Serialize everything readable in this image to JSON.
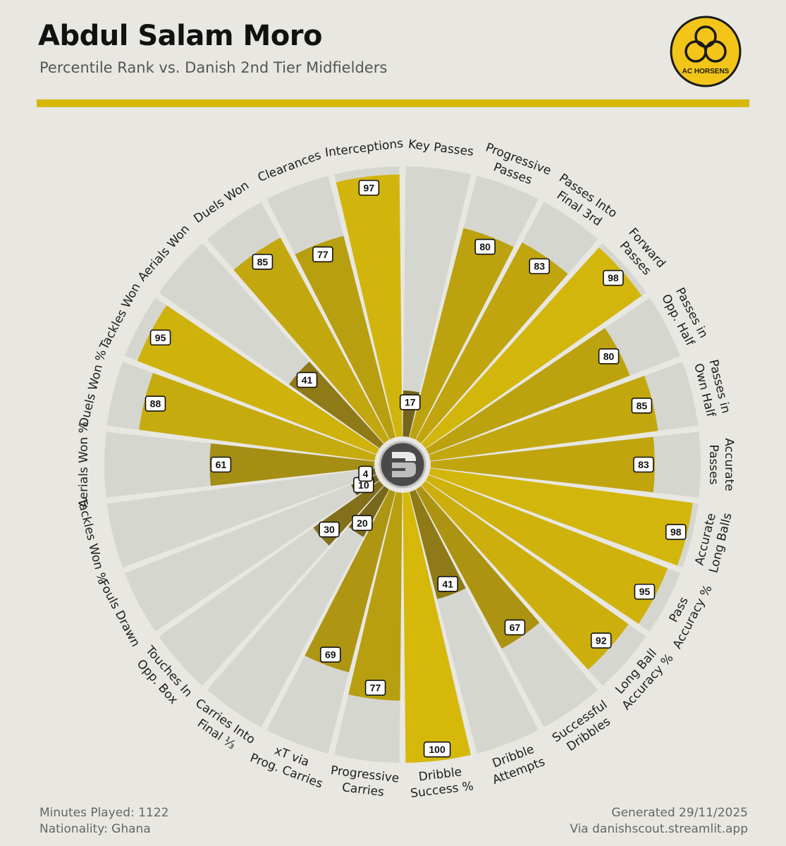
{
  "header": {
    "title": "Abdul Salam Moro",
    "subtitle": "Percentile Rank vs. Danish 2nd Tier Midfielders"
  },
  "logo": {
    "text": "AC HORSENS",
    "colors": {
      "bg": "#f2c518",
      "ring": "#1a1a1a"
    }
  },
  "footer": {
    "minutes": "Minutes Played: 1122",
    "nationality": "Nationality: Ghana",
    "generated": "Generated 29/11/2025",
    "via": "Via danishscout.streamlit.app"
  },
  "colors": {
    "background": "#e8e7e1",
    "track": "#d6d6d0",
    "accent": "#d6b80b"
  },
  "center_icon": "ds-logo-icon",
  "chart_data": {
    "type": "radar-bar",
    "title": "Abdul Salam Moro",
    "subtitle": "Percentile Rank vs. Danish 2nd Tier Midfielders",
    "range": [
      0,
      100
    ],
    "categories": [
      "Key Passes",
      "Progressive\nPasses",
      "Passes Into\nFinal 3rd",
      "Forward\nPasses",
      "Passes in\nOpp. Half",
      "Passes in\nOwn Half",
      "Accurate\nPasses",
      "Accurate\nLong Balls",
      "Pass\nAccuracy %",
      "Long Ball\nAccuracy %",
      "Successful\nDribbles",
      "Dribble\nAttempts",
      "Dribble\nSuccess %",
      "Progressive\nCarries",
      "xT via\nProg. Carries",
      "Carries Into\nFinal ⅓",
      "Touches In\nOpp. Box",
      "Fouls Drawn",
      "Tackles Won %",
      "Aerials Won %",
      "Duels Won %",
      "Tackles Won",
      "Aerials Won",
      "Duels Won",
      "Clearances",
      "Interceptions"
    ],
    "values": [
      17,
      80,
      83,
      98,
      80,
      85,
      83,
      98,
      95,
      92,
      67,
      41,
      100,
      77,
      69,
      20,
      30,
      10,
      4,
      61,
      88,
      95,
      41,
      85,
      77,
      97
    ]
  }
}
